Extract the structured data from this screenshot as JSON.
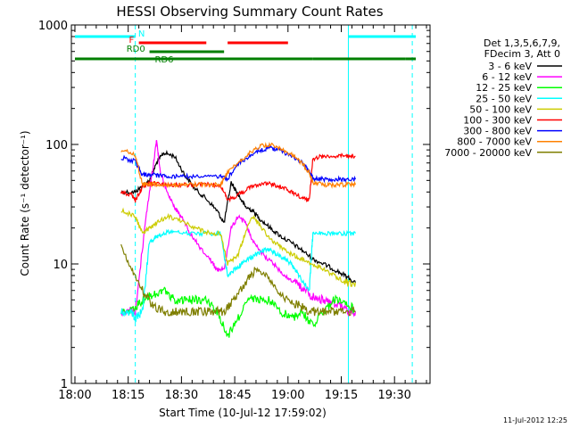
{
  "chart_data": {
    "type": "line",
    "title": "HESSI Observing Summary Count Rates",
    "xlabel": "Start Time (10-Jul-12 17:59:02)",
    "ylabel": "Count Rate (s⁻¹ detector⁻¹)",
    "yscale": "log",
    "ylim": [
      1,
      1000
    ],
    "xlim_minutes": [
      -1,
      100
    ],
    "x_ticks": [
      {
        "m": 0,
        "label": "18:00"
      },
      {
        "m": 15,
        "label": "18:15"
      },
      {
        "m": 30,
        "label": "18:30"
      },
      {
        "m": 45,
        "label": "18:45"
      },
      {
        "m": 60,
        "label": "19:00"
      },
      {
        "m": 75,
        "label": "19:15"
      },
      {
        "m": 90,
        "label": "19:30"
      }
    ],
    "y_ticks": [
      {
        "v": 1,
        "label": "1"
      },
      {
        "v": 10,
        "label": "10"
      },
      {
        "v": 100,
        "label": "100"
      },
      {
        "v": 1000,
        "label": "1000"
      }
    ],
    "legend_header": [
      "Det 1,3,5,6,7,9,",
      "FDecim 3, Att 0"
    ],
    "legend_position": "right",
    "timestamp": "11-Jul-2012 12:25",
    "flag_labels": {
      "N": "N",
      "F": "F",
      "RD0": "RD0",
      "RD6": "RD6"
    },
    "flags": {
      "N": {
        "color": "#00ffff",
        "segments": [
          [
            0,
            17
          ],
          [
            77,
            96
          ]
        ]
      },
      "F": {
        "color": "#ff0000",
        "segments": [
          [
            18,
            37
          ],
          [
            43,
            60
          ]
        ]
      },
      "RD0": {
        "color": "#007f00",
        "segments": [
          [
            21,
            42
          ]
        ]
      },
      "RD6": {
        "color": "#007f00",
        "segments": [
          [
            0,
            44
          ],
          [
            42,
            67
          ],
          [
            67,
            93
          ],
          [
            93,
            96
          ]
        ]
      }
    },
    "vlines": [
      {
        "m": 17,
        "style": "dashed",
        "color": "#00ffff"
      },
      {
        "m": 77,
        "style": "solid",
        "color": "#00ffff"
      },
      {
        "m": 95,
        "style": "dashed",
        "color": "#00ffff"
      }
    ],
    "series": [
      {
        "name": "3 - 6 keV",
        "color": "#000000",
        "x": [
          13,
          17,
          19,
          21,
          23,
          25,
          28,
          31,
          34,
          37,
          40,
          42,
          44,
          46,
          48,
          50,
          52,
          55,
          58,
          61,
          64,
          67,
          70,
          73,
          76,
          79
        ],
        "y": [
          40,
          40,
          45,
          50,
          70,
          85,
          80,
          55,
          42,
          35,
          28,
          22,
          48,
          38,
          30,
          28,
          24,
          20,
          17,
          15,
          13,
          11,
          10,
          9,
          8,
          7
        ]
      },
      {
        "name": "6 - 12 keV",
        "color": "#ff00ff",
        "x": [
          13,
          17,
          20,
          22,
          23,
          24,
          26,
          28,
          30,
          32,
          35,
          38,
          40,
          42,
          44,
          46,
          48,
          50,
          53,
          56,
          59,
          62,
          65,
          68,
          71,
          74,
          77,
          79
        ],
        "y": [
          4,
          4,
          25,
          65,
          110,
          60,
          40,
          30,
          25,
          19,
          14,
          11,
          9,
          9,
          20,
          25,
          22,
          16,
          12,
          10,
          8,
          7,
          6,
          5,
          5,
          4.5,
          4,
          4
        ]
      },
      {
        "name": "12 - 25 keV",
        "color": "#00ff00",
        "x": [
          13,
          16,
          19,
          22,
          25,
          28,
          31,
          34,
          37,
          40,
          43,
          46,
          49,
          52,
          55,
          58,
          61,
          64,
          67,
          70,
          73,
          76,
          79
        ],
        "y": [
          4,
          4,
          5,
          5.5,
          6,
          5,
          5,
          5,
          5,
          4,
          2.5,
          3.5,
          5,
          5,
          5,
          4,
          3.5,
          4,
          3,
          4,
          5,
          5,
          4
        ]
      },
      {
        "name": "25 - 50 keV",
        "color": "#00ffff",
        "x": [
          13,
          16,
          17,
          19,
          21,
          23,
          25,
          28,
          32,
          36,
          40,
          41,
          43,
          45,
          47,
          49,
          51,
          53,
          55,
          57,
          59,
          61,
          63,
          66,
          67,
          70,
          73,
          76,
          79
        ],
        "y": [
          4,
          4,
          3.5,
          4,
          15,
          17,
          18,
          19,
          18,
          18,
          18,
          18,
          8,
          9,
          10,
          11,
          12,
          13,
          13,
          12,
          11,
          10,
          8,
          6,
          18,
          18,
          18,
          18,
          18
        ]
      },
      {
        "name": "50 - 100 keV",
        "color": "#cccc00",
        "x": [
          13,
          17,
          19,
          21,
          23,
          26,
          30,
          34,
          38,
          41,
          43,
          46,
          48,
          50,
          52,
          55,
          58,
          61,
          64,
          67,
          70,
          73,
          76,
          79
        ],
        "y": [
          28,
          25,
          18,
          20,
          22,
          25,
          23,
          20,
          18,
          18,
          10,
          12,
          18,
          25,
          21,
          16,
          14,
          12,
          11,
          10,
          9,
          8,
          7,
          7
        ]
      },
      {
        "name": "100 - 300 keV",
        "color": "#ff0000",
        "x": [
          13,
          16,
          17,
          19,
          21,
          23,
          26,
          30,
          34,
          38,
          41,
          43,
          46,
          49,
          52,
          55,
          58,
          61,
          64,
          66,
          67,
          70,
          73,
          76,
          79
        ],
        "y": [
          40,
          38,
          34,
          44,
          47,
          47,
          46,
          46,
          46,
          46,
          46,
          34,
          38,
          43,
          47,
          47,
          44,
          40,
          36,
          34,
          76,
          80,
          80,
          80,
          80
        ]
      },
      {
        "name": "300 - 800 keV",
        "color": "#0000ff",
        "x": [
          13,
          17,
          19,
          21,
          23,
          26,
          29,
          33,
          37,
          41,
          43,
          46,
          49,
          52,
          55,
          58,
          61,
          64,
          66,
          67,
          70,
          73,
          76,
          79
        ],
        "y": [
          78,
          72,
          56,
          56,
          55,
          54,
          54,
          54,
          54,
          54,
          52,
          68,
          80,
          90,
          93,
          88,
          80,
          70,
          60,
          52,
          51,
          51,
          51,
          51
        ]
      },
      {
        "name": "800 - 7000 keV",
        "color": "#ff8000",
        "x": [
          13,
          17,
          19,
          21,
          23,
          26,
          29,
          33,
          37,
          41,
          43,
          46,
          49,
          52,
          55,
          58,
          61,
          64,
          66,
          67,
          70,
          73,
          76,
          79
        ],
        "y": [
          90,
          82,
          46,
          47,
          46,
          46,
          46,
          46,
          46,
          46,
          58,
          70,
          85,
          97,
          100,
          92,
          82,
          70,
          58,
          48,
          46,
          46,
          46,
          46
        ]
      },
      {
        "name": "7000 - 20000 keV",
        "color": "#7f7f00",
        "x": [
          13,
          16,
          19,
          22,
          25,
          28,
          31,
          34,
          37,
          40,
          42,
          45,
          48,
          51,
          54,
          57,
          60,
          63,
          66,
          69,
          72,
          75,
          79
        ],
        "y": [
          14,
          9,
          6,
          4.5,
          4,
          4,
          4,
          4,
          4,
          4,
          4,
          5,
          7,
          9,
          8,
          6,
          5,
          4.5,
          4,
          4,
          4,
          4,
          4
        ]
      }
    ]
  }
}
